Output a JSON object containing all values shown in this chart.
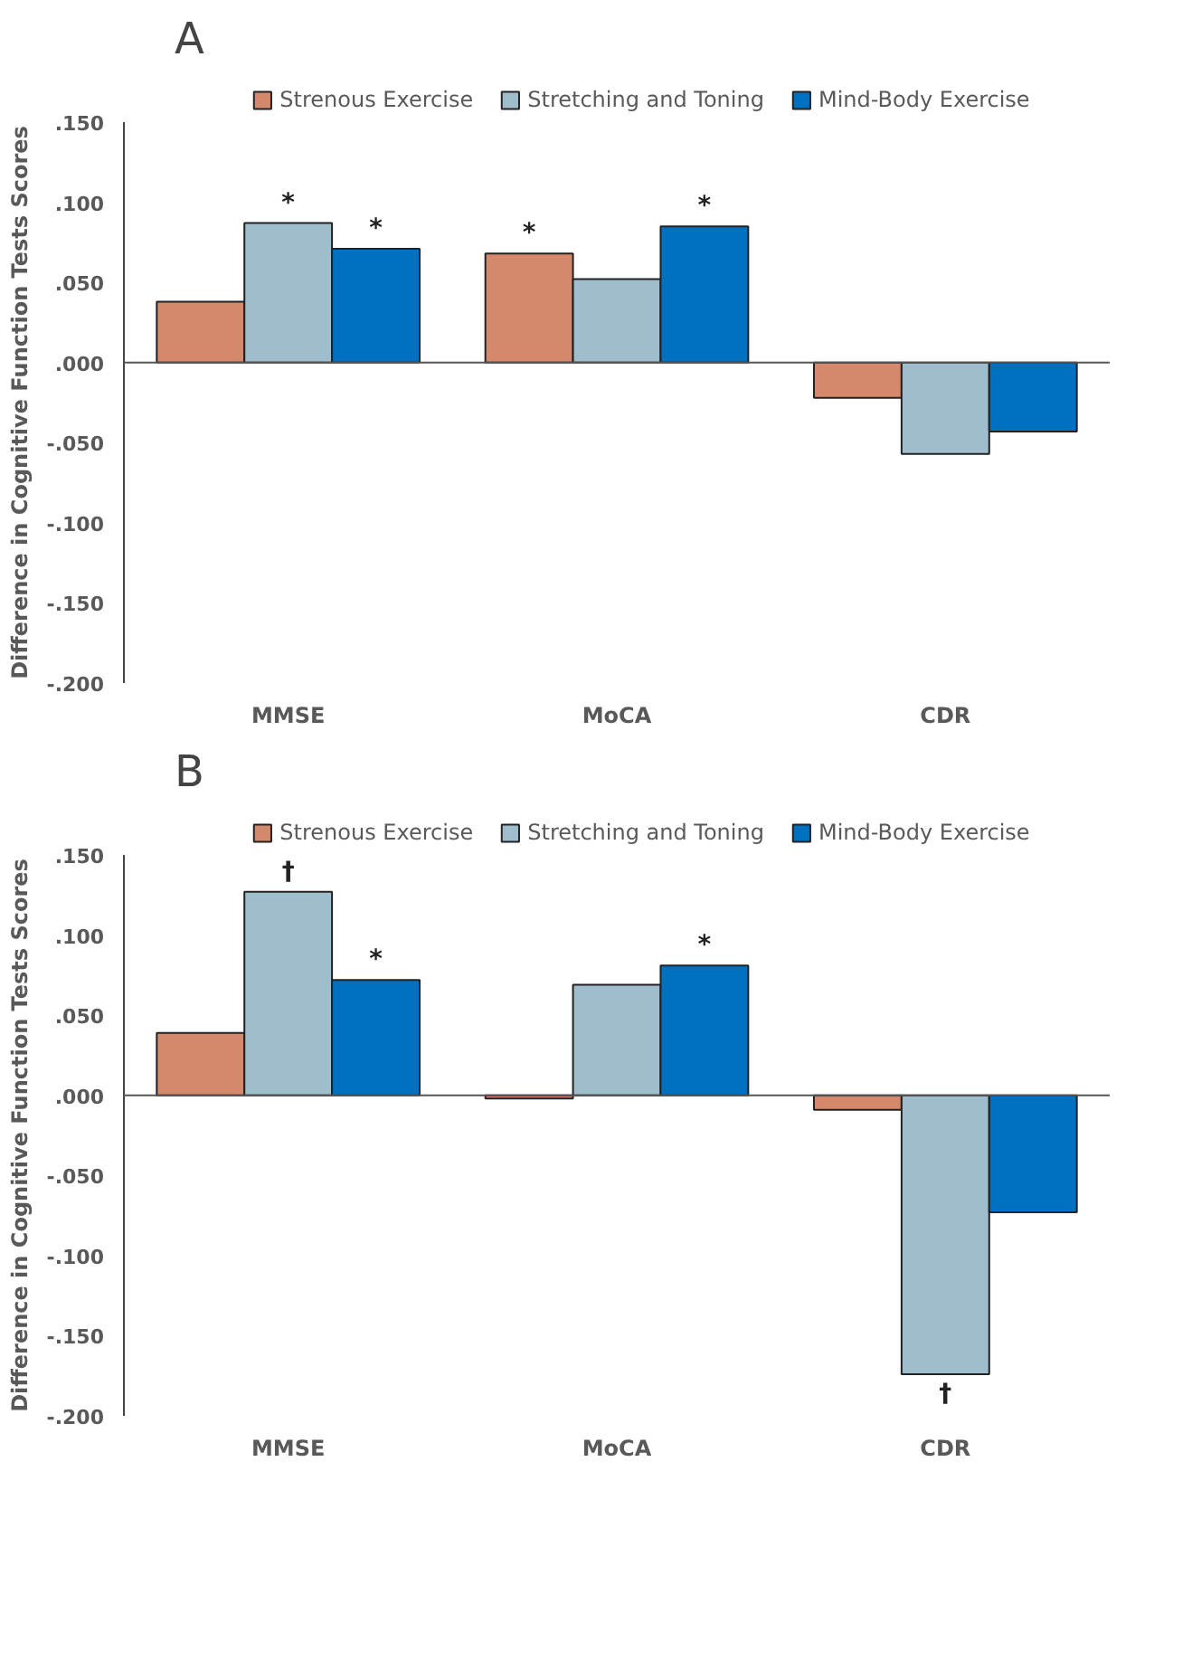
{
  "chart_data": [
    {
      "type": "bar",
      "title": "A",
      "ylabel": "Difference in Cognitive Function Tests Scores",
      "categories": [
        "MMSE",
        "MoCA",
        "CDR"
      ],
      "series": [
        {
          "name": "Strenous Exercise",
          "color": "#d4886c",
          "values": [
            0.038,
            0.068,
            -0.022
          ],
          "value_labels": [
            null,
            "*",
            null
          ]
        },
        {
          "name": "Stretching and Toning",
          "color": "#9fbdcc",
          "values": [
            0.087,
            0.052,
            -0.057
          ],
          "value_labels": [
            "*",
            null,
            null
          ]
        },
        {
          "name": "Mind-Body Exercise",
          "color": "#0070c0",
          "values": [
            0.071,
            0.085,
            -0.043
          ],
          "value_labels": [
            "*",
            "*",
            null
          ]
        }
      ],
      "ylim": [
        -0.2,
        0.15
      ],
      "yticks": [
        {
          "value": 0.15,
          "label": ".150"
        },
        {
          "value": 0.1,
          "label": ".100"
        },
        {
          "value": 0.05,
          "label": ".050"
        },
        {
          "value": 0.0,
          "label": ".000"
        },
        {
          "value": -0.05,
          "label": "-.050"
        },
        {
          "value": -0.1,
          "label": "-.100"
        },
        {
          "value": -0.15,
          "label": "-.150"
        },
        {
          "value": -0.2,
          "label": "-.200"
        }
      ],
      "ref_lines": [
        {
          "axis": "y",
          "value": 0,
          "color": "#555555"
        }
      ],
      "legend": "top"
    },
    {
      "type": "bar",
      "title": "B",
      "ylabel": "Difference in Cognitive Function Tests Scores",
      "categories": [
        "MMSE",
        "MoCA",
        "CDR"
      ],
      "series": [
        {
          "name": "Strenous Exercise",
          "color": "#d4886c",
          "values": [
            0.039,
            -0.002,
            -0.009
          ],
          "value_labels": [
            null,
            null,
            null
          ]
        },
        {
          "name": "Stretching and Toning",
          "color": "#9fbdcc",
          "values": [
            0.127,
            0.069,
            -0.174
          ],
          "value_labels": [
            "†",
            null,
            "†"
          ]
        },
        {
          "name": "Mind-Body Exercise",
          "color": "#0070c0",
          "values": [
            0.072,
            0.081,
            -0.073
          ],
          "value_labels": [
            "*",
            "*",
            null
          ]
        }
      ],
      "ylim": [
        -0.2,
        0.15
      ],
      "yticks": [
        {
          "value": 0.15,
          "label": ".150"
        },
        {
          "value": 0.1,
          "label": ".100"
        },
        {
          "value": 0.05,
          "label": ".050"
        },
        {
          "value": 0.0,
          "label": ".000"
        },
        {
          "value": -0.05,
          "label": "-.050"
        },
        {
          "value": -0.1,
          "label": "-.100"
        },
        {
          "value": -0.15,
          "label": "-.150"
        },
        {
          "value": -0.2,
          "label": "-.200"
        }
      ],
      "ref_lines": [
        {
          "axis": "y",
          "value": 0,
          "color": "#555555"
        }
      ],
      "legend": "top"
    }
  ]
}
